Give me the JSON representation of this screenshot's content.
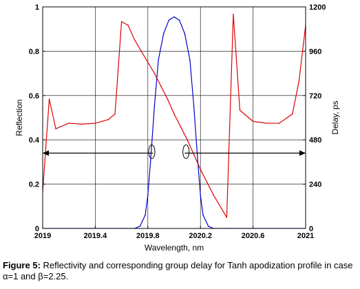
{
  "chart_data": {
    "type": "line",
    "xlabel": "Wavelength, nm",
    "ylabel": "Reflection",
    "y2label": "Delay, ps",
    "xlim": [
      2019,
      2021
    ],
    "ylim": [
      0,
      1
    ],
    "y2lim": [
      0,
      1200
    ],
    "x_ticks": [
      "2019",
      "2019.4",
      "2019.8",
      "2020.2",
      "2020.6",
      "2021"
    ],
    "y_ticks": [
      "0",
      "0.2",
      "0.4",
      "0.6",
      "0.8",
      "1"
    ],
    "y2_ticks": [
      "0",
      "240",
      "480",
      "720",
      "960",
      "1200"
    ],
    "grid": true,
    "series": [
      {
        "color": "#0000cc",
        "axis": "left",
        "x": [
          2019.0,
          2019.6,
          2019.7,
          2019.74,
          2019.78,
          2019.8,
          2019.82,
          2019.85,
          2019.88,
          2019.92,
          2019.96,
          2020.0,
          2020.04,
          2020.08,
          2020.12,
          2020.15,
          2020.18,
          2020.2,
          2020.22,
          2020.26,
          2020.3,
          2020.4,
          2021.0
        ],
        "values": [
          0.0,
          0.0,
          0.0,
          0.01,
          0.06,
          0.15,
          0.3,
          0.55,
          0.76,
          0.88,
          0.94,
          0.955,
          0.94,
          0.88,
          0.76,
          0.55,
          0.3,
          0.15,
          0.06,
          0.01,
          0.0,
          0.0,
          0.0
        ]
      },
      {
        "color": "#dd0000",
        "axis": "right",
        "x": [
          2019.0,
          2019.05,
          2019.1,
          2019.2,
          2019.3,
          2019.4,
          2019.5,
          2019.55,
          2019.6,
          2019.65,
          2019.7,
          2019.75,
          2019.8,
          2019.85,
          2019.9,
          2019.95,
          2020.0,
          2020.05,
          2020.1,
          2020.15,
          2020.2,
          2020.25,
          2020.3,
          2020.35,
          2020.4,
          2020.45,
          2020.5,
          2020.6,
          2020.7,
          2020.8,
          2020.9,
          2020.95,
          2021.0
        ],
        "values": [
          200,
          700,
          540,
          570,
          565,
          570,
          590,
          620,
          1120,
          1100,
          1020,
          960,
          900,
          840,
          770,
          700,
          620,
          550,
          480,
          400,
          320,
          250,
          180,
          120,
          60,
          1160,
          640,
          580,
          570,
          570,
          620,
          800,
          1100
        ]
      }
    ],
    "annotations": [
      {
        "type": "arrow",
        "from": [
          2019.0,
          0.34
        ],
        "to": [
          2019.84,
          0.34
        ],
        "direction": "left"
      },
      {
        "type": "arrow",
        "from": [
          2020.08,
          0.34
        ],
        "to": [
          2021.0,
          0.34
        ],
        "direction": "right"
      },
      {
        "type": "ellipse",
        "at": [
          2019.83,
          0.34
        ]
      },
      {
        "type": "ellipse",
        "at": [
          2020.09,
          0.34
        ]
      }
    ]
  },
  "caption": {
    "label": "Figure 5:",
    "text": " Reflectivity and corresponding group delay for Tanh apodization profile in case α=1 and β=2.25."
  }
}
